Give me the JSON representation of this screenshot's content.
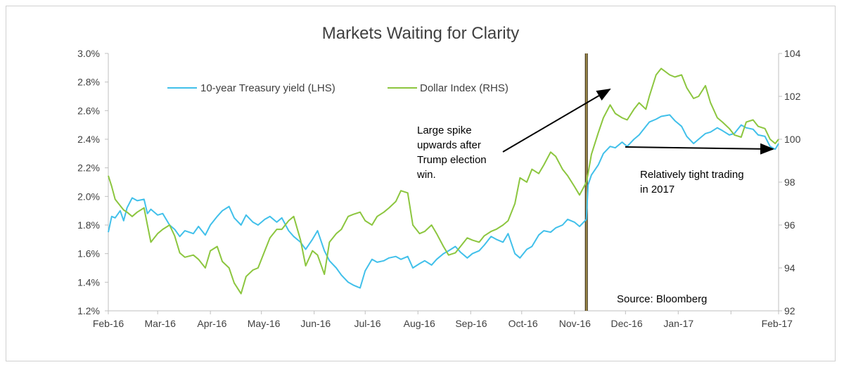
{
  "chart_data": {
    "type": "line",
    "title": "Markets Waiting for Clarity",
    "x_tick_labels": [
      "Feb-16",
      "Mar-16",
      "Apr-16",
      "May-16",
      "Jun-16",
      "Jul-16",
      "Aug-16",
      "Sep-16",
      "Oct-16",
      "Nov-16",
      "Dec-16",
      "Jan-17",
      "Feb-17"
    ],
    "y_left": {
      "ylim": [
        1.2,
        3.0
      ],
      "tick_labels": [
        "1.2%",
        "1.4%",
        "1.6%",
        "1.8%",
        "2.0%",
        "2.2%",
        "2.4%",
        "2.6%",
        "2.8%",
        "3.0%"
      ]
    },
    "y_right": {
      "ylim": [
        92,
        104
      ],
      "tick_labels": [
        "92",
        "94",
        "96",
        "98",
        "100",
        "102",
        "104"
      ]
    },
    "grid": false,
    "legend_position": "top-left",
    "election_marker_x": "2016-11-08",
    "series": [
      {
        "name": "10-year Treasury yield (LHS)",
        "axis": "left",
        "color": "#41c0ea",
        "points": [
          [
            "2016-02-01",
            1.75
          ],
          [
            "2016-02-03",
            1.86
          ],
          [
            "2016-02-05",
            1.85
          ],
          [
            "2016-02-08",
            1.9
          ],
          [
            "2016-02-10",
            1.83
          ],
          [
            "2016-02-12",
            1.92
          ],
          [
            "2016-02-15",
            1.99
          ],
          [
            "2016-02-18",
            1.97
          ],
          [
            "2016-02-22",
            1.98
          ],
          [
            "2016-02-24",
            1.88
          ],
          [
            "2016-02-26",
            1.91
          ],
          [
            "2016-03-01",
            1.87
          ],
          [
            "2016-03-04",
            1.88
          ],
          [
            "2016-03-08",
            1.8
          ],
          [
            "2016-03-11",
            1.77
          ],
          [
            "2016-03-14",
            1.72
          ],
          [
            "2016-03-17",
            1.76
          ],
          [
            "2016-03-22",
            1.74
          ],
          [
            "2016-03-25",
            1.79
          ],
          [
            "2016-03-29",
            1.73
          ],
          [
            "2016-04-01",
            1.8
          ],
          [
            "2016-04-05",
            1.86
          ],
          [
            "2016-04-08",
            1.9
          ],
          [
            "2016-04-12",
            1.93
          ],
          [
            "2016-04-15",
            1.85
          ],
          [
            "2016-04-19",
            1.8
          ],
          [
            "2016-04-22",
            1.87
          ],
          [
            "2016-04-26",
            1.82
          ],
          [
            "2016-04-29",
            1.8
          ],
          [
            "2016-05-03",
            1.84
          ],
          [
            "2016-05-06",
            1.86
          ],
          [
            "2016-05-10",
            1.82
          ],
          [
            "2016-05-13",
            1.85
          ],
          [
            "2016-05-17",
            1.76
          ],
          [
            "2016-05-20",
            1.72
          ],
          [
            "2016-05-24",
            1.68
          ],
          [
            "2016-05-27",
            1.63
          ],
          [
            "2016-05-31",
            1.7
          ],
          [
            "2016-06-03",
            1.76
          ],
          [
            "2016-06-07",
            1.62
          ],
          [
            "2016-06-10",
            1.55
          ],
          [
            "2016-06-14",
            1.5
          ],
          [
            "2016-06-17",
            1.45
          ],
          [
            "2016-06-21",
            1.4
          ],
          [
            "2016-06-24",
            1.38
          ],
          [
            "2016-06-28",
            1.36
          ],
          [
            "2016-07-01",
            1.48
          ],
          [
            "2016-07-05",
            1.56
          ],
          [
            "2016-07-08",
            1.54
          ],
          [
            "2016-07-12",
            1.55
          ],
          [
            "2016-07-15",
            1.57
          ],
          [
            "2016-07-19",
            1.58
          ],
          [
            "2016-07-22",
            1.56
          ],
          [
            "2016-07-26",
            1.58
          ],
          [
            "2016-07-29",
            1.5
          ],
          [
            "2016-08-02",
            1.53
          ],
          [
            "2016-08-05",
            1.55
          ],
          [
            "2016-08-09",
            1.52
          ],
          [
            "2016-08-12",
            1.56
          ],
          [
            "2016-08-16",
            1.6
          ],
          [
            "2016-08-19",
            1.62
          ],
          [
            "2016-08-23",
            1.65
          ],
          [
            "2016-08-26",
            1.61
          ],
          [
            "2016-08-30",
            1.57
          ],
          [
            "2016-09-02",
            1.6
          ],
          [
            "2016-09-06",
            1.62
          ],
          [
            "2016-09-09",
            1.66
          ],
          [
            "2016-09-13",
            1.72
          ],
          [
            "2016-09-16",
            1.7
          ],
          [
            "2016-09-20",
            1.68
          ],
          [
            "2016-09-23",
            1.74
          ],
          [
            "2016-09-27",
            1.6
          ],
          [
            "2016-09-30",
            1.57
          ],
          [
            "2016-10-04",
            1.63
          ],
          [
            "2016-10-07",
            1.65
          ],
          [
            "2016-10-11",
            1.73
          ],
          [
            "2016-10-14",
            1.76
          ],
          [
            "2016-10-18",
            1.75
          ],
          [
            "2016-10-21",
            1.78
          ],
          [
            "2016-10-25",
            1.8
          ],
          [
            "2016-10-28",
            1.84
          ],
          [
            "2016-11-01",
            1.82
          ],
          [
            "2016-11-04",
            1.79
          ],
          [
            "2016-11-08",
            1.84
          ],
          [
            "2016-11-09",
            2.08
          ],
          [
            "2016-11-11",
            2.15
          ],
          [
            "2016-11-15",
            2.22
          ],
          [
            "2016-11-18",
            2.3
          ],
          [
            "2016-11-22",
            2.35
          ],
          [
            "2016-11-25",
            2.34
          ],
          [
            "2016-11-29",
            2.38
          ],
          [
            "2016-12-02",
            2.35
          ],
          [
            "2016-12-06",
            2.4
          ],
          [
            "2016-12-09",
            2.43
          ],
          [
            "2016-12-13",
            2.49
          ],
          [
            "2016-12-15",
            2.52
          ],
          [
            "2016-12-19",
            2.54
          ],
          [
            "2016-12-22",
            2.56
          ],
          [
            "2016-12-27",
            2.57
          ],
          [
            "2016-12-30",
            2.53
          ],
          [
            "2017-01-03",
            2.49
          ],
          [
            "2017-01-06",
            2.42
          ],
          [
            "2017-01-10",
            2.37
          ],
          [
            "2017-01-13",
            2.4
          ],
          [
            "2017-01-17",
            2.44
          ],
          [
            "2017-01-20",
            2.45
          ],
          [
            "2017-01-24",
            2.48
          ],
          [
            "2017-01-27",
            2.46
          ],
          [
            "2017-01-31",
            2.43
          ],
          [
            "2017-02-03",
            2.44
          ],
          [
            "2017-02-07",
            2.5
          ],
          [
            "2017-02-10",
            2.48
          ],
          [
            "2017-02-14",
            2.47
          ],
          [
            "2017-02-17",
            2.43
          ],
          [
            "2017-02-21",
            2.42
          ],
          [
            "2017-02-24",
            2.35
          ],
          [
            "2017-02-27",
            2.33
          ],
          [
            "2017-03-01",
            2.37
          ]
        ]
      },
      {
        "name": "Dollar Index (RHS)",
        "axis": "right",
        "color": "#8cc63f",
        "points": [
          [
            "2016-02-01",
            98.3
          ],
          [
            "2016-02-03",
            97.8
          ],
          [
            "2016-02-05",
            97.2
          ],
          [
            "2016-02-08",
            96.9
          ],
          [
            "2016-02-10",
            96.7
          ],
          [
            "2016-02-12",
            96.6
          ],
          [
            "2016-02-15",
            96.4
          ],
          [
            "2016-02-18",
            96.6
          ],
          [
            "2016-02-22",
            96.8
          ],
          [
            "2016-02-24",
            96.0
          ],
          [
            "2016-02-26",
            95.2
          ],
          [
            "2016-03-01",
            95.6
          ],
          [
            "2016-03-04",
            95.8
          ],
          [
            "2016-03-08",
            96.0
          ],
          [
            "2016-03-11",
            95.5
          ],
          [
            "2016-03-14",
            94.7
          ],
          [
            "2016-03-17",
            94.5
          ],
          [
            "2016-03-22",
            94.6
          ],
          [
            "2016-03-25",
            94.4
          ],
          [
            "2016-03-29",
            94.0
          ],
          [
            "2016-04-01",
            94.8
          ],
          [
            "2016-04-05",
            95.0
          ],
          [
            "2016-04-08",
            94.3
          ],
          [
            "2016-04-12",
            94.0
          ],
          [
            "2016-04-15",
            93.3
          ],
          [
            "2016-04-19",
            92.8
          ],
          [
            "2016-04-22",
            93.6
          ],
          [
            "2016-04-26",
            93.9
          ],
          [
            "2016-04-29",
            94.0
          ],
          [
            "2016-05-03",
            94.8
          ],
          [
            "2016-05-06",
            95.4
          ],
          [
            "2016-05-10",
            95.8
          ],
          [
            "2016-05-13",
            95.8
          ],
          [
            "2016-05-17",
            96.2
          ],
          [
            "2016-05-20",
            96.4
          ],
          [
            "2016-05-24",
            95.3
          ],
          [
            "2016-05-27",
            94.1
          ],
          [
            "2016-05-31",
            94.8
          ],
          [
            "2016-06-03",
            94.6
          ],
          [
            "2016-06-07",
            93.7
          ],
          [
            "2016-06-10",
            95.2
          ],
          [
            "2016-06-14",
            95.6
          ],
          [
            "2016-06-17",
            95.8
          ],
          [
            "2016-06-21",
            96.4
          ],
          [
            "2016-06-24",
            96.5
          ],
          [
            "2016-06-28",
            96.6
          ],
          [
            "2016-07-01",
            96.2
          ],
          [
            "2016-07-05",
            96.0
          ],
          [
            "2016-07-08",
            96.4
          ],
          [
            "2016-07-12",
            96.6
          ],
          [
            "2016-07-15",
            96.8
          ],
          [
            "2016-07-19",
            97.1
          ],
          [
            "2016-07-22",
            97.6
          ],
          [
            "2016-07-26",
            97.5
          ],
          [
            "2016-07-29",
            96.0
          ],
          [
            "2016-08-02",
            95.6
          ],
          [
            "2016-08-05",
            95.7
          ],
          [
            "2016-08-09",
            96.0
          ],
          [
            "2016-08-12",
            95.6
          ],
          [
            "2016-08-16",
            95.0
          ],
          [
            "2016-08-19",
            94.6
          ],
          [
            "2016-08-23",
            94.7
          ],
          [
            "2016-08-26",
            95.0
          ],
          [
            "2016-08-30",
            95.4
          ],
          [
            "2016-09-02",
            95.3
          ],
          [
            "2016-09-06",
            95.2
          ],
          [
            "2016-09-09",
            95.5
          ],
          [
            "2016-09-13",
            95.7
          ],
          [
            "2016-09-16",
            95.8
          ],
          [
            "2016-09-20",
            96.0
          ],
          [
            "2016-09-23",
            96.2
          ],
          [
            "2016-09-27",
            97.0
          ],
          [
            "2016-09-30",
            98.2
          ],
          [
            "2016-10-04",
            98.0
          ],
          [
            "2016-10-07",
            98.6
          ],
          [
            "2016-10-11",
            98.4
          ],
          [
            "2016-10-14",
            98.8
          ],
          [
            "2016-10-18",
            99.4
          ],
          [
            "2016-10-21",
            99.2
          ],
          [
            "2016-10-25",
            98.6
          ],
          [
            "2016-10-28",
            98.3
          ],
          [
            "2016-11-01",
            97.8
          ],
          [
            "2016-11-04",
            97.4
          ],
          [
            "2016-11-08",
            98.0
          ],
          [
            "2016-11-09",
            98.4
          ],
          [
            "2016-11-11",
            99.3
          ],
          [
            "2016-11-15",
            100.3
          ],
          [
            "2016-11-18",
            101.0
          ],
          [
            "2016-11-22",
            101.6
          ],
          [
            "2016-11-25",
            101.2
          ],
          [
            "2016-11-29",
            101.0
          ],
          [
            "2016-12-02",
            100.9
          ],
          [
            "2016-12-06",
            101.4
          ],
          [
            "2016-12-09",
            101.7
          ],
          [
            "2016-12-13",
            101.4
          ],
          [
            "2016-12-15",
            102.0
          ],
          [
            "2016-12-19",
            103.0
          ],
          [
            "2016-12-22",
            103.3
          ],
          [
            "2016-12-27",
            103.0
          ],
          [
            "2016-12-30",
            102.9
          ],
          [
            "2017-01-03",
            103.0
          ],
          [
            "2017-01-06",
            102.4
          ],
          [
            "2017-01-10",
            101.9
          ],
          [
            "2017-01-13",
            102.0
          ],
          [
            "2017-01-17",
            102.5
          ],
          [
            "2017-01-20",
            101.7
          ],
          [
            "2017-01-24",
            101.0
          ],
          [
            "2017-01-27",
            100.8
          ],
          [
            "2017-01-31",
            100.5
          ],
          [
            "2017-02-03",
            100.2
          ],
          [
            "2017-02-07",
            100.1
          ],
          [
            "2017-02-10",
            100.8
          ],
          [
            "2017-02-14",
            100.9
          ],
          [
            "2017-02-17",
            100.6
          ],
          [
            "2017-02-21",
            100.5
          ],
          [
            "2017-02-24",
            100.0
          ],
          [
            "2017-02-27",
            99.8
          ],
          [
            "2017-03-01",
            100.0
          ]
        ]
      }
    ],
    "annotations": [
      {
        "lines": [
          "Large spike",
          "upwards after",
          "Trump election",
          "win."
        ]
      },
      {
        "lines": [
          "Relatively tight trading",
          "in 2017"
        ]
      },
      {
        "lines": [
          "Source: Bloomberg"
        ]
      }
    ]
  }
}
